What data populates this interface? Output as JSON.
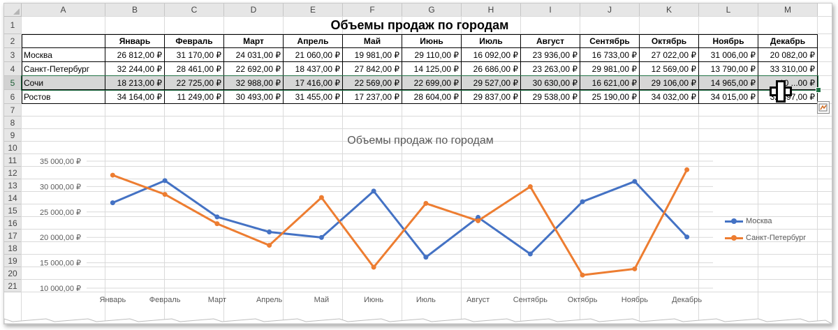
{
  "spreadsheet": {
    "columns": [
      "A",
      "B",
      "C",
      "D",
      "E",
      "F",
      "G",
      "H",
      "I",
      "J",
      "K",
      "L",
      "M"
    ],
    "rows": [
      "1",
      "2",
      "3",
      "4",
      "5",
      "6",
      "7",
      "8",
      "9",
      "10",
      "11",
      "12",
      "13",
      "14",
      "15",
      "16",
      "17",
      "18",
      "19",
      "20",
      "21"
    ],
    "selected_row": 4,
    "title": "Объемы продаж по городам",
    "months": [
      "Январь",
      "Февраль",
      "Март",
      "Апрель",
      "Май",
      "Июнь",
      "Июль",
      "Август",
      "Сентябрь",
      "Октябрь",
      "Ноябрь",
      "Декабрь"
    ],
    "cities": [
      {
        "name": "Москва",
        "values": [
          "26 812,00 ₽",
          "31 170,00 ₽",
          "24 031,00 ₽",
          "21 060,00 ₽",
          "19 981,00 ₽",
          "29 110,00 ₽",
          "16 092,00 ₽",
          "23 936,00 ₽",
          "16 733,00 ₽",
          "27 022,00 ₽",
          "31 006,00 ₽",
          "20 082,00 ₽"
        ]
      },
      {
        "name": "Санкт-Петербург",
        "values": [
          "32 244,00 ₽",
          "28 461,00 ₽",
          "22 692,00 ₽",
          "18 437,00 ₽",
          "27 842,00 ₽",
          "14 125,00 ₽",
          "26 686,00 ₽",
          "23 263,00 ₽",
          "29 981,00 ₽",
          "12 569,00 ₽",
          "13 790,00 ₽",
          "33 310,00 ₽"
        ]
      },
      {
        "name": "Сочи",
        "values": [
          "18 213,00 ₽",
          "22 725,00 ₽",
          "32 988,00 ₽",
          "17 416,00 ₽",
          "22 569,00 ₽",
          "22 699,00 ₽",
          "29 527,00 ₽",
          "30 630,00 ₽",
          "16 621,00 ₽",
          "29 106,00 ₽",
          "14 965,00 ₽",
          "10 ...00 ₽"
        ]
      },
      {
        "name": "Ростов",
        "values": [
          "34 164,00 ₽",
          "11 249,00 ₽",
          "30 493,00 ₽",
          "31 455,00 ₽",
          "17 237,00 ₽",
          "28 604,00 ₽",
          "29 837,00 ₽",
          "29 538,00 ₽",
          "25 190,00 ₽",
          "34 032,00 ₽",
          "34 015,00 ₽",
          "32 897,00 ₽"
        ]
      }
    ]
  },
  "colors": {
    "selection": "#217346",
    "series_moscow": "#4472C4",
    "series_spb": "#ED7D31"
  },
  "icons": {
    "quick_analysis": "quick-analysis-icon",
    "cursor": "cell-select-cursor-icon"
  },
  "chart_data": {
    "type": "line",
    "title": "Объемы продаж по городам",
    "categories": [
      "Январь",
      "Февраль",
      "Март",
      "Апрель",
      "Май",
      "Июнь",
      "Июль",
      "Август",
      "Сентябрь",
      "Октябрь",
      "Ноябрь",
      "Декабрь"
    ],
    "series": [
      {
        "name": "Москва",
        "values": [
          26812,
          31170,
          24031,
          21060,
          19981,
          29110,
          16092,
          23936,
          16733,
          27022,
          31006,
          20082
        ]
      },
      {
        "name": "Санкт-Петербург",
        "values": [
          32244,
          28461,
          22692,
          18437,
          27842,
          14125,
          26686,
          23263,
          29981,
          12569,
          13790,
          33310
        ]
      }
    ],
    "ylim": [
      10000,
      35000
    ],
    "yticks": [
      10000,
      15000,
      20000,
      25000,
      30000,
      35000
    ],
    "ytick_labels": [
      "10 000,00 ₽",
      "15 000,00 ₽",
      "20 000,00 ₽",
      "25 000,00 ₽",
      "30 000,00 ₽",
      "35 000,00 ₽"
    ],
    "xlabel": "",
    "ylabel": "",
    "grid": true,
    "legend": "right"
  }
}
